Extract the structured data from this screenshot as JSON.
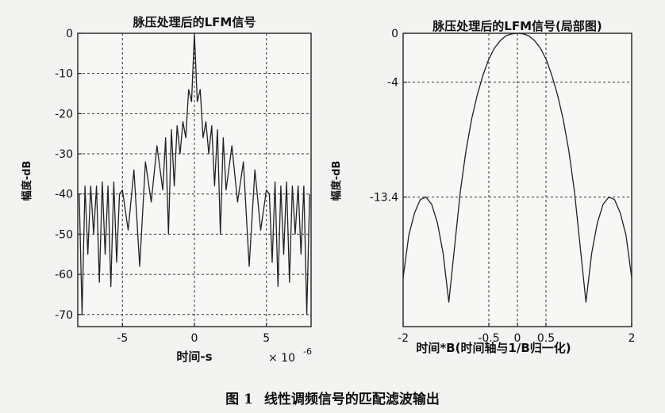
{
  "caption": {
    "figure_label": "图 1",
    "text": "线性调频信号的匹配滤波输出"
  },
  "chart_data": [
    {
      "type": "line",
      "title": "脉压处理后的LFM信号",
      "xlabel": "时间-s",
      "ylabel": "幅度-dB",
      "x_exponent_label": "× 10",
      "x_exponent": "-6",
      "xlim": [
        -8.1,
        8.1
      ],
      "ylim": [
        -73,
        0
      ],
      "xticks": [
        -5,
        0,
        5
      ],
      "yticks": [
        0,
        -10,
        -20,
        -30,
        -40,
        -50,
        -60,
        -70
      ],
      "xtick_labels": [
        "-5",
        "0",
        "5"
      ],
      "ytick_labels": [
        "0",
        "-10",
        "-20",
        "-30",
        "-40",
        "-50",
        "-60",
        "-70"
      ],
      "grid": true,
      "series": [
        {
          "color": "#222222",
          "description_of_shape": "sinc-like compressed pulse, main lobe 0 dB at t=0, rippling sidelobes",
          "x": [
            -8.0,
            -7.8,
            -7.6,
            -7.4,
            -7.2,
            -7.0,
            -6.8,
            -6.6,
            -6.4,
            -6.2,
            -6.0,
            -5.8,
            -5.6,
            -5.4,
            -5.2,
            -5.0,
            -4.6,
            -4.2,
            -3.8,
            -3.4,
            -3.0,
            -2.6,
            -2.2,
            -2.0,
            -1.8,
            -1.6,
            -1.4,
            -1.2,
            -1.0,
            -0.8,
            -0.6,
            -0.4,
            -0.2,
            0.0,
            0.2,
            0.4,
            0.6,
            0.8,
            1.0,
            1.2,
            1.4,
            1.6,
            1.8,
            2.0,
            2.2,
            2.6,
            3.0,
            3.4,
            3.8,
            4.2,
            4.6,
            5.0,
            5.2,
            5.4,
            5.6,
            5.8,
            6.0,
            6.2,
            6.4,
            6.6,
            6.8,
            7.0,
            7.2,
            7.4,
            7.6,
            7.8,
            8.0
          ],
          "y": [
            -40,
            -70,
            -38,
            -55,
            -38,
            -50,
            -38,
            -62,
            -37,
            -55,
            -38,
            -63,
            -37,
            -57,
            -40,
            -39,
            -49,
            -34,
            -58,
            -32,
            -42,
            -28,
            -39,
            -26,
            -50,
            -24,
            -38,
            -23,
            -30,
            -22,
            -26,
            -14,
            -17,
            0,
            -17,
            -14,
            -26,
            -22,
            -30,
            -23,
            -38,
            -24,
            -50,
            -26,
            -39,
            -28,
            -42,
            -32,
            -58,
            -34,
            -49,
            -39,
            -40,
            -57,
            -37,
            -63,
            -38,
            -55,
            -37,
            -62,
            -38,
            -50,
            -38,
            -55,
            -38,
            -70,
            -40
          ]
        }
      ]
    },
    {
      "type": "line",
      "title": "脉压处理后的LFM信号(局部图)",
      "xlabel": "时间*B(时间轴与1/B归一化)",
      "ylabel": "幅度-dB",
      "xlim": [
        -2,
        2
      ],
      "ylim": [
        -24,
        0
      ],
      "xticks": [
        -2,
        -0.5,
        0,
        0.5,
        2
      ],
      "yticks": [
        0,
        -4,
        -13.4
      ],
      "xtick_labels": [
        "-2",
        "-0.5",
        "0",
        "0.5",
        "2"
      ],
      "ytick_labels": [
        "0",
        "-4",
        "-13.4"
      ],
      "grid": true,
      "series": [
        {
          "color": "#222222",
          "description_of_shape": "zoom of sinc main lobe and first sidelobes",
          "x": [
            -2.0,
            -1.9,
            -1.8,
            -1.7,
            -1.6,
            -1.5,
            -1.4,
            -1.3,
            -1.2,
            -1.1,
            -1.0,
            -0.9,
            -0.8,
            -0.7,
            -0.6,
            -0.5,
            -0.4,
            -0.3,
            -0.2,
            -0.1,
            0.0,
            0.1,
            0.2,
            0.3,
            0.4,
            0.5,
            0.6,
            0.7,
            0.8,
            0.9,
            1.0,
            1.1,
            1.2,
            1.3,
            1.4,
            1.5,
            1.6,
            1.7,
            1.8,
            1.9,
            2.0
          ],
          "y": [
            -20,
            -16.5,
            -14.7,
            -13.6,
            -13.4,
            -14.0,
            -15.5,
            -18.0,
            -22.0,
            -17.5,
            -13.0,
            -9.6,
            -7.0,
            -5.0,
            -3.4,
            -2.1,
            -1.2,
            -0.6,
            -0.2,
            -0.05,
            0,
            -0.05,
            -0.2,
            -0.6,
            -1.2,
            -2.1,
            -3.4,
            -5.0,
            -7.0,
            -9.6,
            -13.0,
            -17.5,
            -22.0,
            -18.0,
            -15.5,
            -14.0,
            -13.4,
            -13.6,
            -14.7,
            -16.5,
            -20
          ]
        }
      ]
    }
  ]
}
